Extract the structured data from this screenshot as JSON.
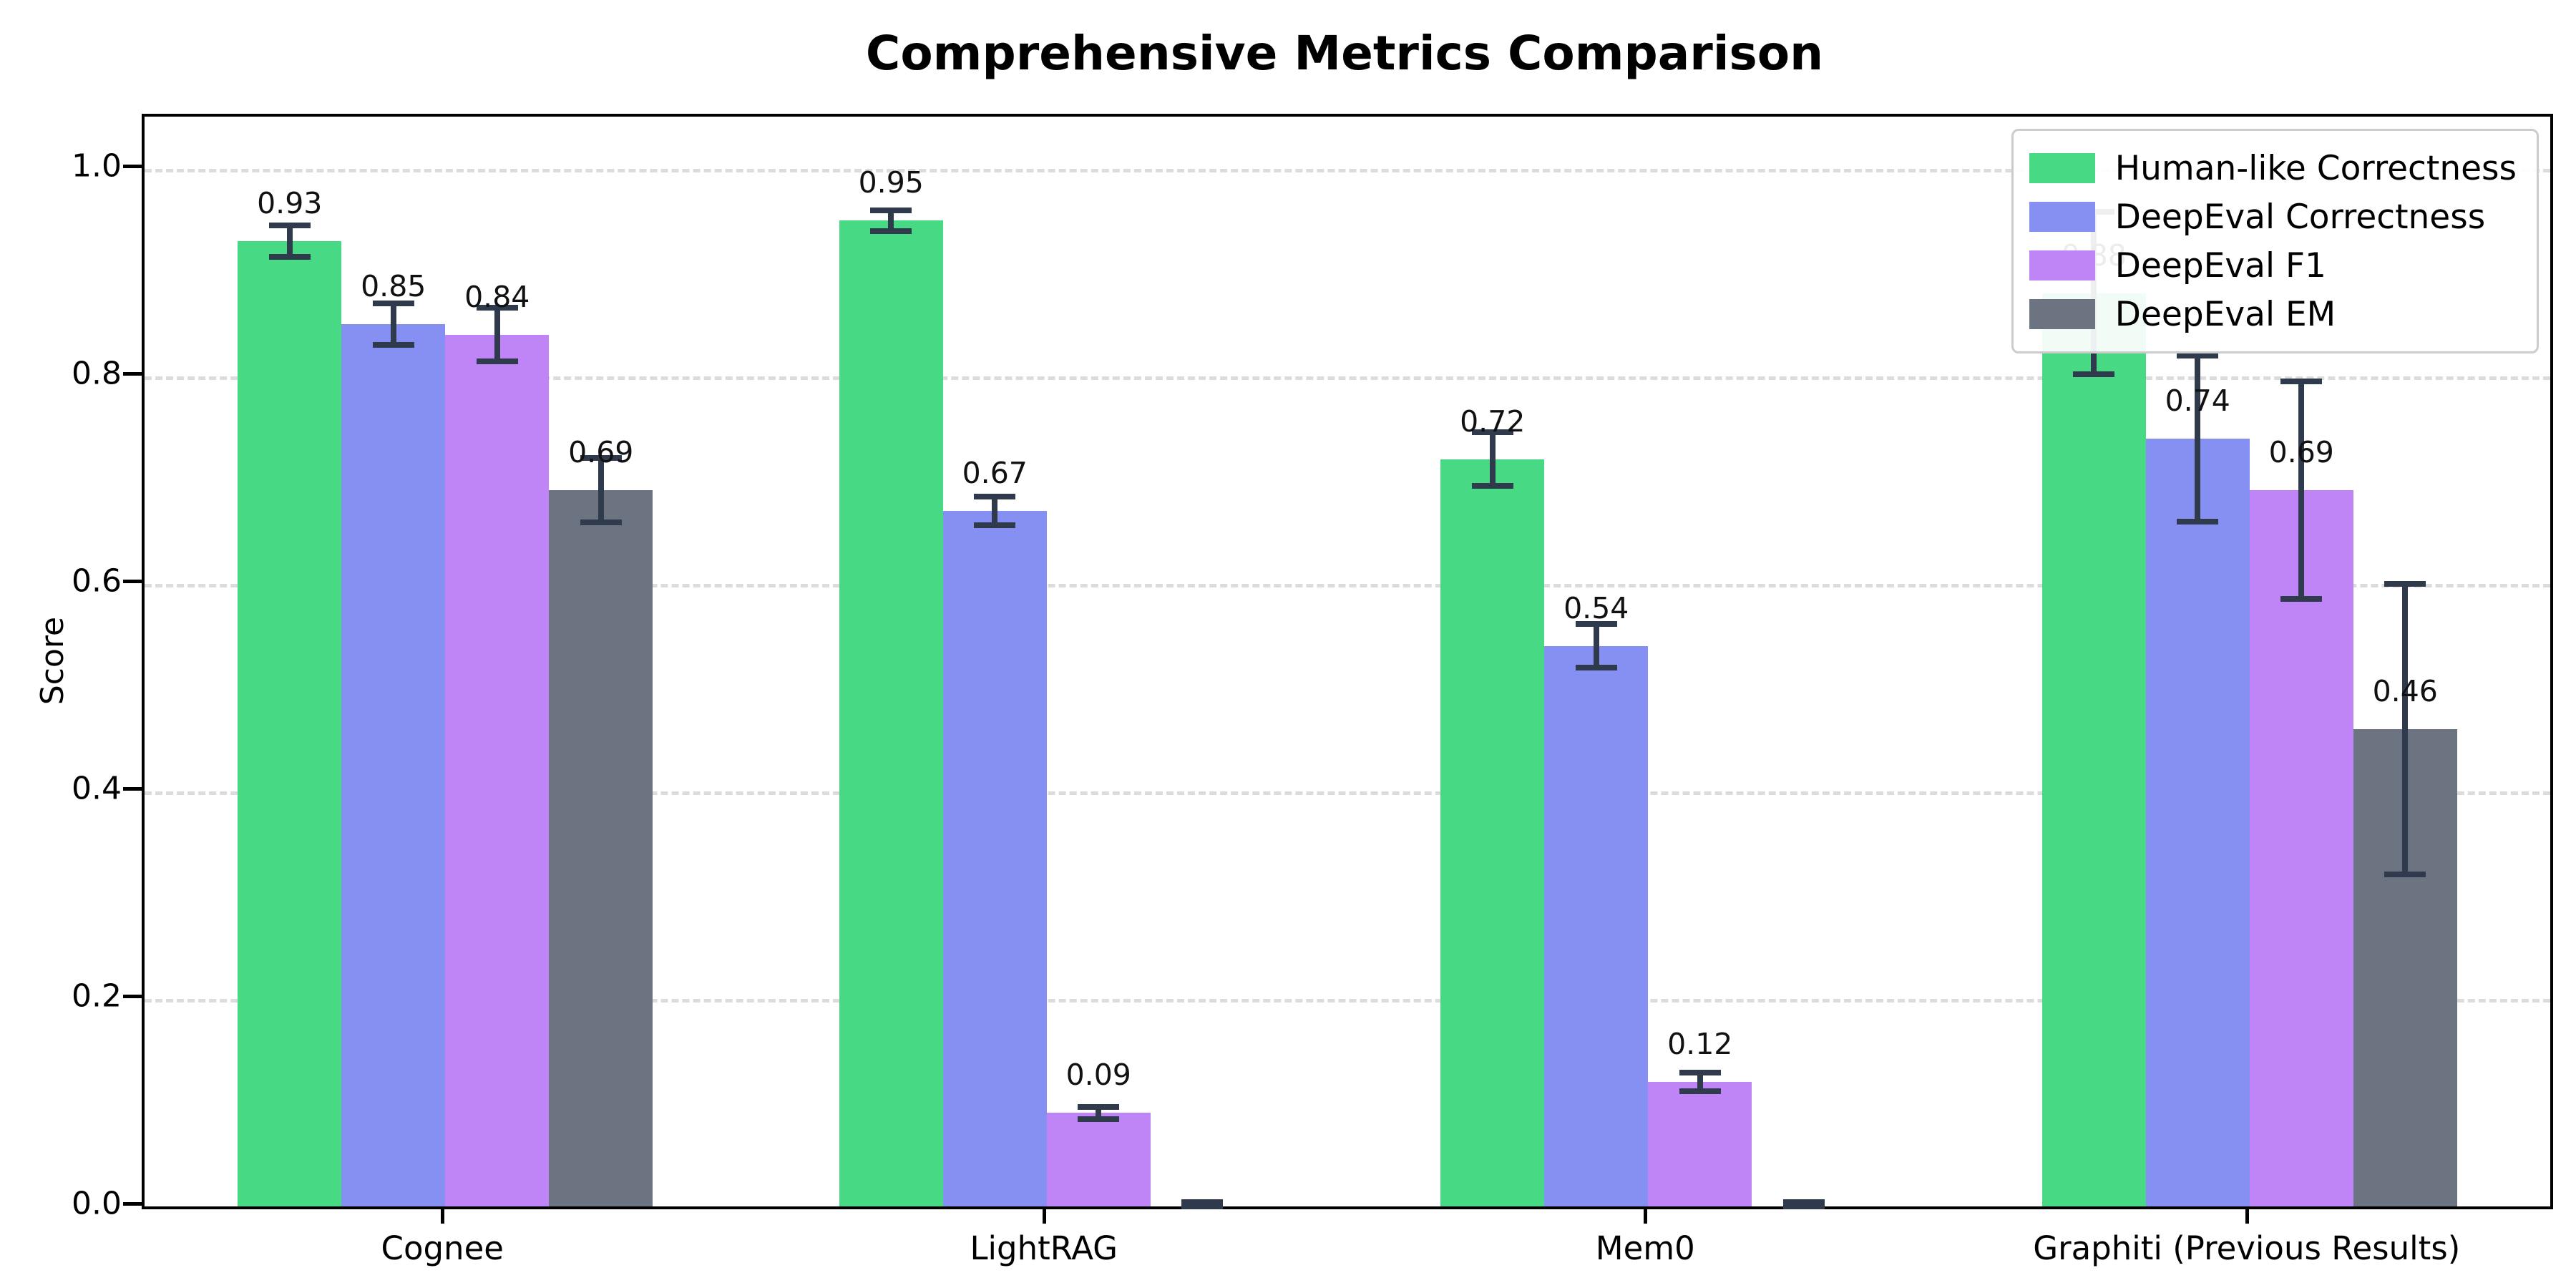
{
  "chart_data": {
    "type": "bar",
    "title": "Comprehensive Metrics Comparison",
    "ylabel": "Score",
    "xlabel": "",
    "categories": [
      "Cognee",
      "LightRAG",
      "Mem0",
      "Graphiti (Previous Results)"
    ],
    "series": [
      {
        "name": "Human-like Correctness",
        "color": "#47d983",
        "values": [
          0.93,
          0.95,
          0.72,
          0.88
        ],
        "errors": [
          0.015,
          0.01,
          0.026,
          0.078
        ],
        "labels": [
          "0.93",
          "0.95",
          "0.72",
          "0.88"
        ]
      },
      {
        "name": "DeepEval Correctness",
        "color": "#8590f2",
        "values": [
          0.85,
          0.67,
          0.54,
          0.74
        ],
        "errors": [
          0.02,
          0.014,
          0.021,
          0.08
        ],
        "labels": [
          "0.85",
          "0.67",
          "0.54",
          "0.74"
        ]
      },
      {
        "name": "DeepEval F1",
        "color": "#bf85f6",
        "values": [
          0.84,
          0.09,
          0.12,
          0.69
        ],
        "errors": [
          0.026,
          0.006,
          0.009,
          0.105
        ],
        "labels": [
          "0.84",
          "0.09",
          "0.12",
          "0.69"
        ]
      },
      {
        "name": "DeepEval EM",
        "color": "#6b7480",
        "values": [
          0.69,
          0.0,
          0.0,
          0.46
        ],
        "errors": [
          0.031,
          0.004,
          0.004,
          0.14
        ],
        "labels": [
          "0.69",
          "",
          "",
          "0.46"
        ]
      }
    ],
    "ylim": [
      0,
      1.05
    ],
    "yticks": [
      "0.0",
      "0.2",
      "0.4",
      "0.6",
      "0.8",
      "1.0"
    ],
    "grid": "horizontal-dashed",
    "legend_position": "upper-right",
    "error_bar_color": "#2f3a4d",
    "bar_value_label_offset": 0.02
  }
}
